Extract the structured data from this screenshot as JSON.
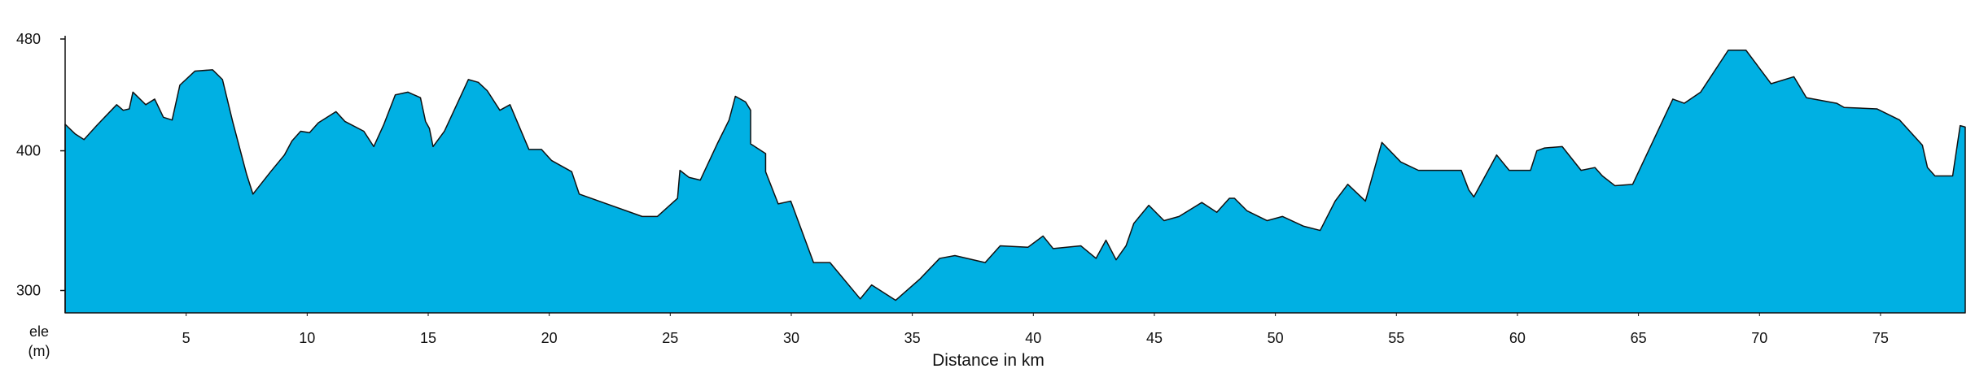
{
  "chart_data": {
    "type": "area",
    "x_label": "Distance in km",
    "y_label_lines": [
      "ele",
      "(m)"
    ],
    "color": "#00b0e3",
    "xlim": [
      0,
      78.5
    ],
    "ylim": [
      284,
      480
    ],
    "xticks": [
      5,
      10,
      15,
      20,
      25,
      30,
      35,
      40,
      45,
      50,
      55,
      60,
      65,
      70,
      75
    ],
    "yticks": [
      300,
      400,
      480
    ],
    "x": [
      0,
      0.42,
      0.78,
      1.3,
      2.13,
      2.4,
      2.65,
      2.8,
      3.33,
      3.7,
      4.06,
      4.42,
      4.74,
      5.36,
      6.09,
      6.5,
      6.92,
      7.5,
      7.76,
      8.49,
      9.06,
      9.37,
      9.73,
      10.1,
      10.46,
      11.19,
      11.56,
      12.34,
      12.75,
      13.17,
      13.64,
      14.16,
      14.68,
      14.89,
      15.05,
      15.2,
      15.67,
      16.66,
      17.07,
      17.44,
      17.96,
      18.38,
      19.16,
      19.68,
      20.1,
      20.93,
      21.24,
      23.84,
      24.47,
      25.3,
      25.4,
      25.77,
      26.24,
      26.97,
      27.43,
      27.69,
      28.11,
      28.32,
      28.32,
      28.94,
      28.94,
      29.46,
      29.98,
      30.92,
      31.6,
      32.85,
      33.32,
      34.31,
      35.3,
      36.13,
      36.76,
      38.01,
      38.63,
      39.78,
      40.4,
      40.82,
      41.96,
      42.59,
      43.0,
      43.42,
      43.83,
      44.15,
      44.77,
      45.4,
      46.02,
      46.96,
      47.58,
      48.1,
      48.31,
      48.83,
      49.66,
      50.29,
      51.17,
      51.85,
      52.47,
      52.99,
      53.72,
      54.4,
      55.18,
      55.91,
      57.68,
      57.99,
      58.2,
      59.14,
      59.66,
      60.54,
      60.8,
      61.12,
      61.85,
      62.63,
      63.2,
      63.51,
      64.03,
      64.76,
      66.42,
      66.89,
      67.57,
      68.71,
      69.44,
      70.48,
      71.42,
      71.94,
      73.19,
      73.5,
      74.85,
      75.79,
      76.73,
      76.94,
      77.25,
      77.98,
      78.29,
      78.5
    ],
    "values": [
      419,
      412,
      408,
      418,
      433,
      429,
      430,
      442,
      433,
      437,
      424,
      422,
      447,
      457,
      458,
      451,
      421,
      383,
      369,
      385,
      397,
      407,
      414,
      413,
      420,
      428,
      421,
      414,
      403,
      419,
      440,
      442,
      438,
      421,
      416,
      403,
      414,
      451,
      449,
      443,
      429,
      433,
      401,
      401,
      393,
      385,
      369,
      353,
      353,
      366,
      386,
      381,
      379,
      406,
      422,
      439,
      435,
      429,
      405,
      398,
      385,
      362,
      364,
      320,
      320,
      294,
      304,
      293,
      308,
      323,
      325,
      320,
      332,
      331,
      339,
      330,
      332,
      323,
      336,
      322,
      332,
      348,
      361,
      350,
      353,
      363,
      356,
      366,
      366,
      357,
      350,
      353,
      346,
      343,
      364,
      376,
      364,
      406,
      392,
      386,
      386,
      372,
      367,
      397,
      386,
      386,
      400,
      402,
      403,
      386,
      388,
      382,
      375,
      376,
      437,
      434,
      442,
      472,
      472,
      448,
      453,
      438,
      434,
      431,
      430,
      422,
      404,
      388,
      382,
      382,
      418,
      417
    ]
  }
}
